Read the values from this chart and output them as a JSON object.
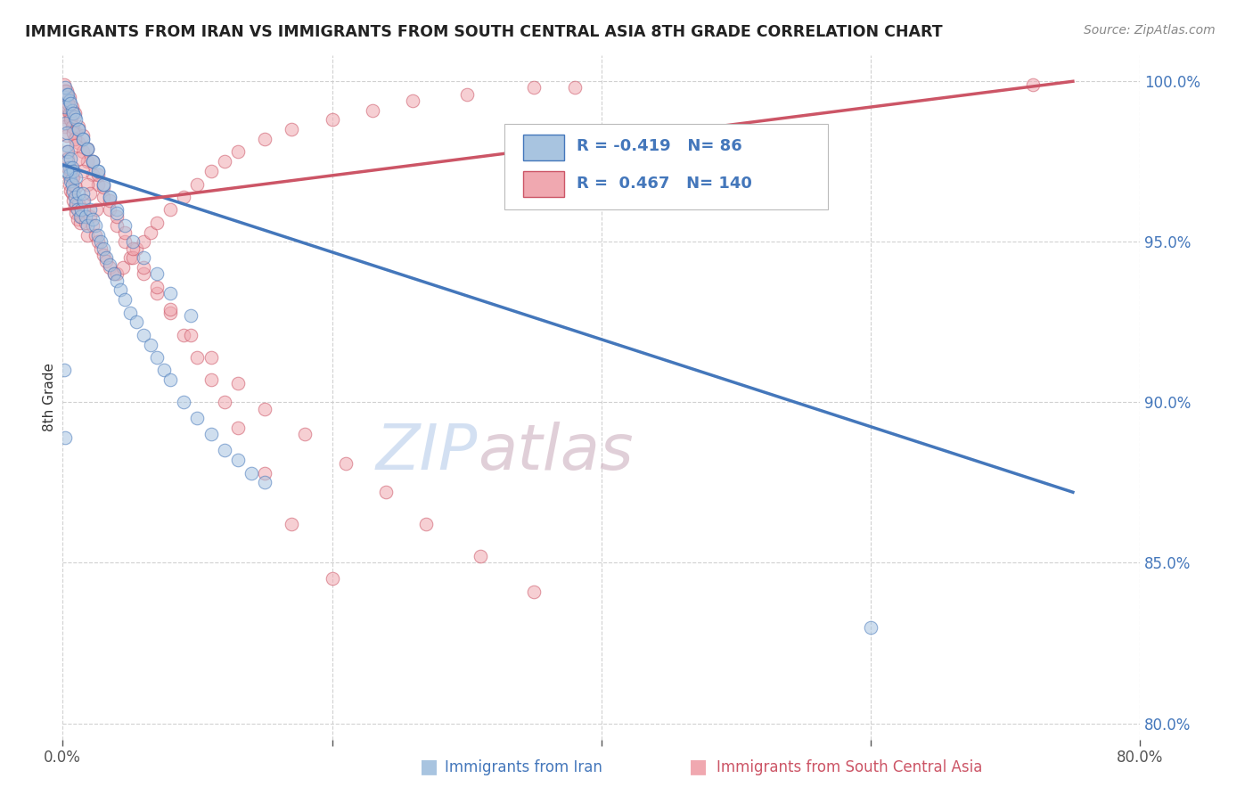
{
  "title": "IMMIGRANTS FROM IRAN VS IMMIGRANTS FROM SOUTH CENTRAL ASIA 8TH GRADE CORRELATION CHART",
  "source_text": "Source: ZipAtlas.com",
  "xlabel_blue": "Immigrants from Iran",
  "xlabel_pink": "Immigrants from South Central Asia",
  "ylabel": "8th Grade",
  "xlim": [
    0.0,
    0.8
  ],
  "ylim": [
    0.795,
    1.008
  ],
  "xticks": [
    0.0,
    0.2,
    0.4,
    0.6,
    0.8
  ],
  "xtick_labels": [
    "0.0%",
    "",
    "",
    "",
    "80.0%"
  ],
  "yticks": [
    0.8,
    0.85,
    0.9,
    0.95,
    1.0
  ],
  "ytick_labels": [
    "80.0%",
    "85.0%",
    "90.0%",
    "95.0%",
    "100.0%"
  ],
  "R_blue": -0.419,
  "N_blue": 86,
  "R_pink": 0.467,
  "N_pink": 140,
  "blue_color": "#a8c4e0",
  "pink_color": "#f0a8b0",
  "blue_line_color": "#4477bb",
  "pink_line_color": "#cc5566",
  "watermark_zip": "ZIP",
  "watermark_atlas": "atlas",
  "blue_line_x": [
    0.0,
    0.75
  ],
  "blue_line_y": [
    0.974,
    0.872
  ],
  "pink_line_x": [
    0.0,
    0.75
  ],
  "pink_line_y": [
    0.96,
    1.0
  ],
  "blue_scatter_x": [
    0.001,
    0.002,
    0.002,
    0.003,
    0.003,
    0.004,
    0.004,
    0.005,
    0.005,
    0.006,
    0.006,
    0.007,
    0.007,
    0.008,
    0.008,
    0.009,
    0.01,
    0.01,
    0.011,
    0.012,
    0.013,
    0.014,
    0.015,
    0.016,
    0.017,
    0.018,
    0.02,
    0.022,
    0.024,
    0.026,
    0.028,
    0.03,
    0.032,
    0.035,
    0.038,
    0.04,
    0.043,
    0.046,
    0.05,
    0.055,
    0.06,
    0.065,
    0.07,
    0.075,
    0.08,
    0.09,
    0.1,
    0.11,
    0.12,
    0.13,
    0.14,
    0.15,
    0.003,
    0.005,
    0.007,
    0.009,
    0.012,
    0.015,
    0.018,
    0.022,
    0.026,
    0.03,
    0.035,
    0.04,
    0.046,
    0.052,
    0.06,
    0.07,
    0.08,
    0.095,
    0.002,
    0.004,
    0.006,
    0.008,
    0.01,
    0.012,
    0.015,
    0.018,
    0.022,
    0.026,
    0.03,
    0.035,
    0.04,
    0.6,
    0.001,
    0.002,
    0.003
  ],
  "blue_scatter_y": [
    0.995,
    0.992,
    0.987,
    0.984,
    0.98,
    0.978,
    0.975,
    0.973,
    0.971,
    0.969,
    0.976,
    0.973,
    0.968,
    0.972,
    0.966,
    0.964,
    0.97,
    0.962,
    0.96,
    0.965,
    0.958,
    0.96,
    0.965,
    0.963,
    0.958,
    0.955,
    0.96,
    0.957,
    0.955,
    0.952,
    0.95,
    0.948,
    0.945,
    0.943,
    0.94,
    0.938,
    0.935,
    0.932,
    0.928,
    0.925,
    0.921,
    0.918,
    0.914,
    0.91,
    0.907,
    0.9,
    0.895,
    0.89,
    0.885,
    0.882,
    0.878,
    0.875,
    0.996,
    0.994,
    0.991,
    0.989,
    0.985,
    0.982,
    0.979,
    0.975,
    0.972,
    0.968,
    0.964,
    0.96,
    0.955,
    0.95,
    0.945,
    0.94,
    0.934,
    0.927,
    0.998,
    0.996,
    0.993,
    0.99,
    0.988,
    0.985,
    0.982,
    0.979,
    0.975,
    0.972,
    0.968,
    0.964,
    0.959,
    0.83,
    0.91,
    0.889,
    0.972
  ],
  "pink_scatter_x": [
    0.001,
    0.002,
    0.002,
    0.003,
    0.003,
    0.004,
    0.004,
    0.005,
    0.005,
    0.006,
    0.006,
    0.007,
    0.007,
    0.008,
    0.008,
    0.009,
    0.01,
    0.01,
    0.011,
    0.012,
    0.013,
    0.014,
    0.015,
    0.016,
    0.017,
    0.018,
    0.02,
    0.022,
    0.024,
    0.026,
    0.028,
    0.03,
    0.032,
    0.035,
    0.038,
    0.04,
    0.045,
    0.05,
    0.055,
    0.06,
    0.065,
    0.07,
    0.08,
    0.09,
    0.1,
    0.11,
    0.12,
    0.13,
    0.15,
    0.17,
    0.2,
    0.23,
    0.26,
    0.3,
    0.35,
    0.38,
    0.002,
    0.004,
    0.006,
    0.008,
    0.01,
    0.012,
    0.015,
    0.018,
    0.022,
    0.026,
    0.03,
    0.035,
    0.04,
    0.046,
    0.052,
    0.06,
    0.07,
    0.08,
    0.09,
    0.1,
    0.11,
    0.12,
    0.13,
    0.15,
    0.17,
    0.2,
    0.003,
    0.005,
    0.007,
    0.009,
    0.012,
    0.015,
    0.018,
    0.022,
    0.026,
    0.03,
    0.035,
    0.04,
    0.046,
    0.052,
    0.06,
    0.07,
    0.08,
    0.095,
    0.11,
    0.13,
    0.15,
    0.18,
    0.21,
    0.24,
    0.27,
    0.31,
    0.35,
    0.72,
    0.001,
    0.002,
    0.003,
    0.004,
    0.005,
    0.006,
    0.007,
    0.008,
    0.009,
    0.01,
    0.012,
    0.015,
    0.018,
    0.02,
    0.025
  ],
  "pink_scatter_y": [
    0.992,
    0.989,
    0.986,
    0.983,
    0.978,
    0.976,
    0.973,
    0.97,
    0.968,
    0.966,
    0.972,
    0.97,
    0.965,
    0.97,
    0.963,
    0.961,
    0.967,
    0.959,
    0.957,
    0.962,
    0.956,
    0.958,
    0.963,
    0.96,
    0.956,
    0.952,
    0.958,
    0.955,
    0.952,
    0.95,
    0.948,
    0.946,
    0.944,
    0.942,
    0.94,
    0.94,
    0.942,
    0.945,
    0.948,
    0.95,
    0.953,
    0.956,
    0.96,
    0.964,
    0.968,
    0.972,
    0.975,
    0.978,
    0.982,
    0.985,
    0.988,
    0.991,
    0.994,
    0.996,
    0.998,
    0.998,
    0.994,
    0.992,
    0.989,
    0.986,
    0.984,
    0.981,
    0.978,
    0.975,
    0.971,
    0.968,
    0.964,
    0.96,
    0.955,
    0.95,
    0.945,
    0.94,
    0.934,
    0.928,
    0.921,
    0.914,
    0.907,
    0.9,
    0.892,
    0.878,
    0.862,
    0.845,
    0.997,
    0.995,
    0.992,
    0.99,
    0.986,
    0.983,
    0.979,
    0.975,
    0.971,
    0.967,
    0.963,
    0.958,
    0.953,
    0.948,
    0.942,
    0.936,
    0.929,
    0.921,
    0.914,
    0.906,
    0.898,
    0.89,
    0.881,
    0.872,
    0.862,
    0.852,
    0.841,
    0.999,
    0.999,
    0.997,
    0.995,
    0.993,
    0.99,
    0.988,
    0.986,
    0.984,
    0.982,
    0.98,
    0.976,
    0.972,
    0.968,
    0.965,
    0.96
  ]
}
